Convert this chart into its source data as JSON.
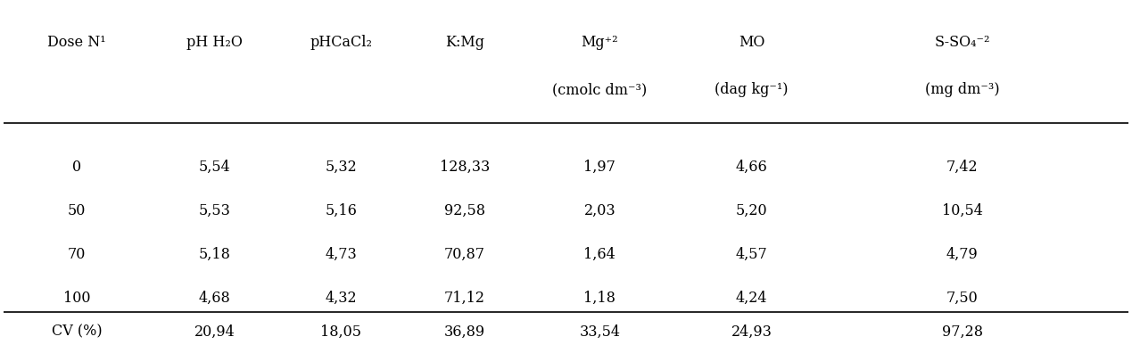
{
  "col_headers_line1": [
    "Dose N¹",
    "pH H₂O",
    "pHCaCl₂",
    "K:Mg",
    "Mg⁺²",
    "MO",
    "S-SO₄⁻²"
  ],
  "col_headers_line2": [
    "",
    "",
    "",
    "",
    "(cmolᴄ dm⁻³)",
    "(dag kg⁻¹)",
    "(mg dm⁻³)"
  ],
  "rows": [
    [
      "0",
      "5,54",
      "5,32",
      "128,33",
      "1,97",
      "4,66",
      "7,42"
    ],
    [
      "50",
      "5,53",
      "5,16",
      "92,58",
      "2,03",
      "5,20",
      "10,54"
    ],
    [
      "70",
      "5,18",
      "4,73",
      "70,87",
      "1,64",
      "4,57",
      "4,79"
    ],
    [
      "100",
      "4,68",
      "4,32",
      "71,12",
      "1,18",
      "4,24",
      "7,50"
    ]
  ],
  "cv_row": [
    "CV (%)",
    "20,94",
    "18,05",
    "36,89",
    "33,54",
    "24,93",
    "97,28"
  ],
  "background_color": "#ffffff",
  "text_color": "#000000",
  "font_size": 11.5
}
